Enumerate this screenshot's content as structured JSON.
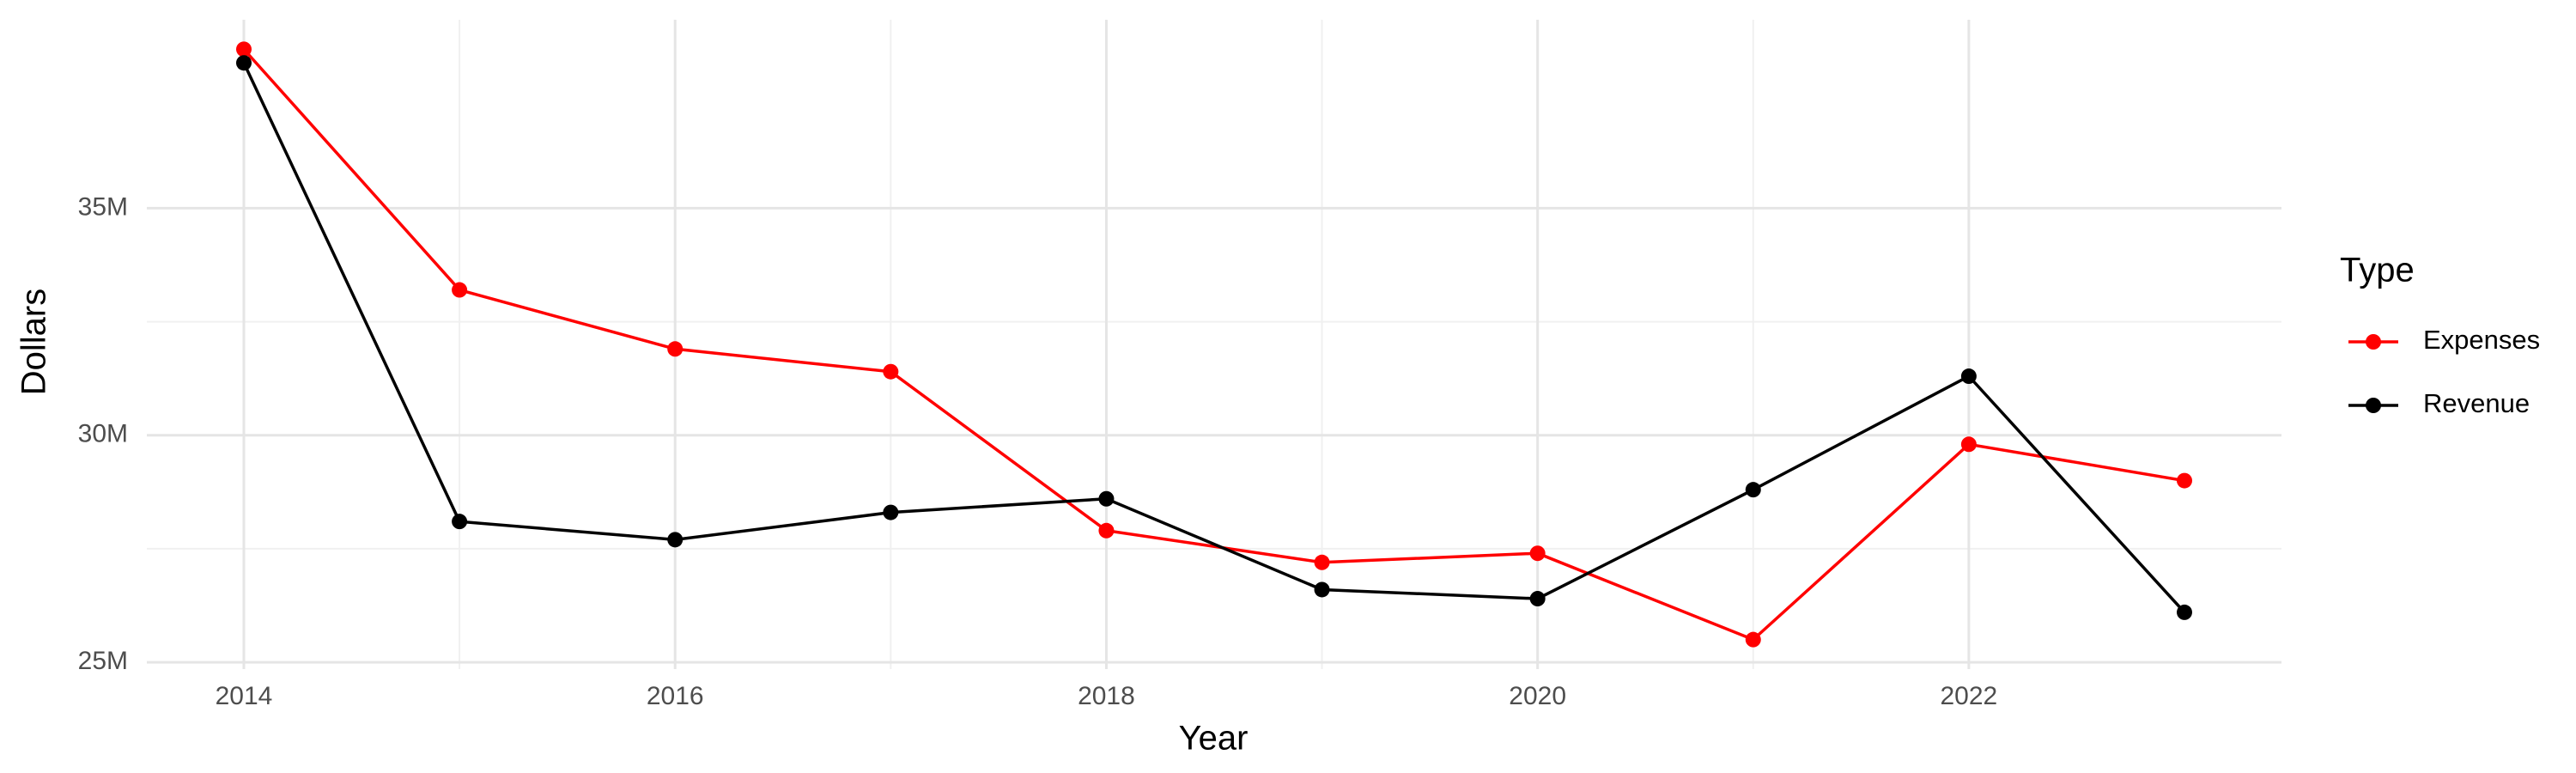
{
  "chart_data": {
    "type": "line",
    "x_label": "Year",
    "y_label": "Dollars",
    "legend_title": "Type",
    "legend_position": "right",
    "grid": true,
    "x": [
      2014,
      2015,
      2016,
      2017,
      2018,
      2019,
      2020,
      2021,
      2022,
      2023
    ],
    "series": [
      {
        "name": "Expenses",
        "color": "#ff0000",
        "values": [
          38500000,
          33200000,
          31900000,
          31400000,
          27900000,
          27200000,
          27400000,
          25500000,
          29800000,
          29000000
        ]
      },
      {
        "name": "Revenue",
        "color": "#000000",
        "values": [
          38200000,
          28100000,
          27700000,
          28300000,
          28600000,
          26600000,
          26400000,
          28800000,
          31300000,
          26100000
        ]
      }
    ],
    "xlim": [
      2013.55,
      2023.45
    ],
    "xticks": [
      2014,
      2016,
      2018,
      2020,
      2022
    ],
    "ylim": [
      24850000,
      39150000
    ],
    "yticks": [
      {
        "value": 25000000,
        "label": "25M"
      },
      {
        "value": 30000000,
        "label": "30M"
      },
      {
        "value": 35000000,
        "label": "35M"
      }
    ]
  }
}
